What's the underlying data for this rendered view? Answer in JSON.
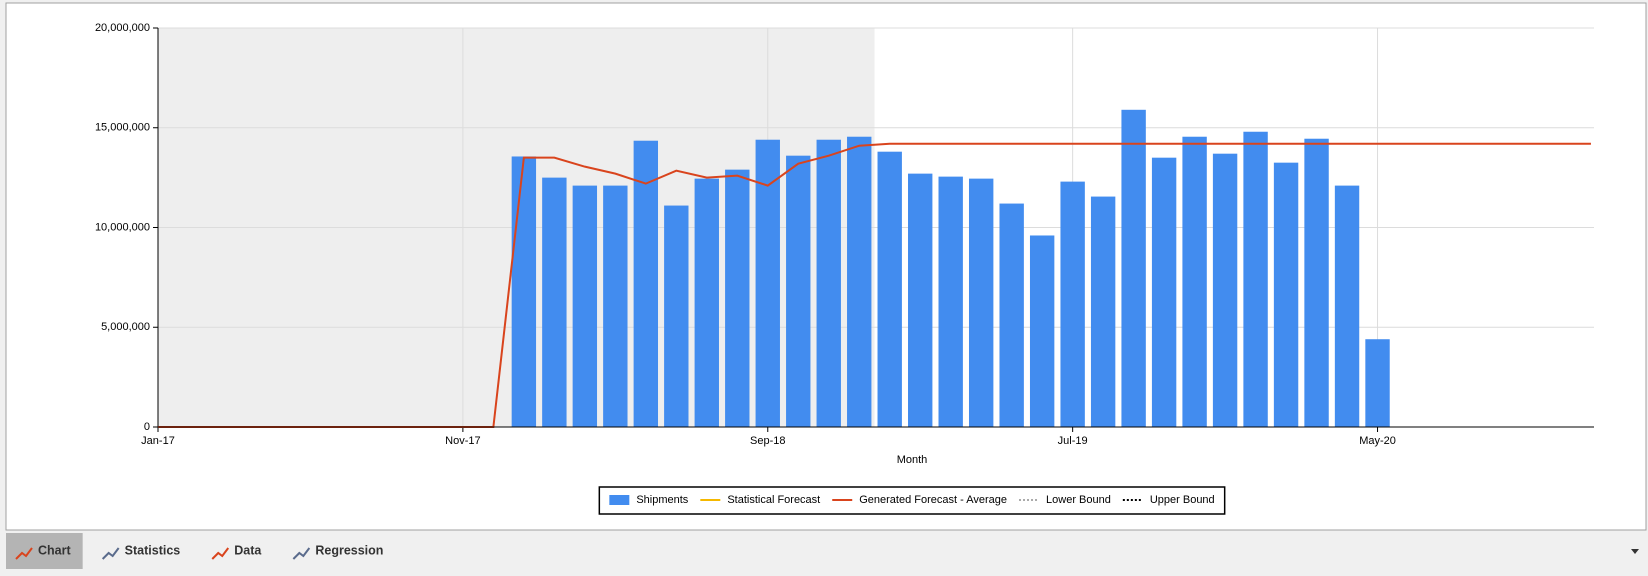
{
  "chart_data": {
    "type": "bar",
    "x_label": "Month",
    "xlim": [
      0,
      47.1
    ],
    "xticks": [
      {
        "value": 0,
        "label": "Jan-17"
      },
      {
        "value": 10,
        "label": "Nov-17"
      },
      {
        "value": 20,
        "label": "Sep-18"
      },
      {
        "value": 30,
        "label": "Jul-19"
      },
      {
        "value": 40,
        "label": "May-20"
      }
    ],
    "ylim": [
      0,
      20000000
    ],
    "yticks": [
      {
        "value": 0,
        "label": "0"
      },
      {
        "value": 5000000,
        "label": "5,000,000"
      },
      {
        "value": 10000000,
        "label": "10,000,000"
      },
      {
        "value": 15000000,
        "label": "15,000,000"
      },
      {
        "value": 20000000,
        "label": "20,000,000"
      }
    ],
    "grid": true,
    "shaded_range": [
      0,
      23.5
    ],
    "legend": "bottom",
    "series": [
      {
        "name": "Shipments",
        "style": "bar",
        "color": "#428cef",
        "x": [
          12,
          13,
          14,
          15,
          16,
          17,
          18,
          19,
          20,
          21,
          22,
          23,
          24,
          25,
          26,
          27,
          28,
          29,
          30,
          31,
          32,
          33,
          34,
          35,
          36,
          37,
          38,
          39,
          40
        ],
        "values": [
          13560000,
          12500000,
          12100000,
          12100000,
          14350000,
          11100000,
          12450000,
          12900000,
          14400000,
          13600000,
          14400000,
          14550000,
          13800000,
          12700000,
          12550000,
          12450000,
          11200000,
          9600000,
          12300000,
          11550000,
          15900000,
          13500000,
          14550000,
          13700000,
          14800000,
          13250000,
          14450000,
          12100000,
          4400000
        ]
      },
      {
        "name": "Statistical Forecast",
        "style": "line",
        "color": "#f5b800"
      },
      {
        "name": "Generated Forecast - Average",
        "style": "line",
        "color": "#d9441d",
        "x": [
          0,
          1,
          2,
          3,
          4,
          5,
          6,
          7,
          8,
          9,
          10,
          11,
          12,
          13,
          14,
          15,
          16,
          17,
          18,
          19,
          20,
          21,
          22,
          23,
          24,
          25,
          26,
          27,
          28,
          29,
          30,
          31,
          32,
          33,
          34,
          35,
          36,
          37,
          38,
          39,
          40,
          41,
          42,
          43,
          44,
          45,
          46,
          47
        ],
        "values": [
          0,
          0,
          0,
          0,
          0,
          0,
          0,
          0,
          0,
          0,
          0,
          0,
          13500000,
          13500000,
          13050000,
          12700000,
          12200000,
          12850000,
          12500000,
          12600000,
          12100000,
          13200000,
          13600000,
          14100000,
          14200000,
          14200000,
          14200000,
          14200000,
          14200000,
          14200000,
          14200000,
          14200000,
          14200000,
          14200000,
          14200000,
          14200000,
          14200000,
          14200000,
          14200000,
          14200000,
          14200000,
          14200000,
          14200000,
          14200000,
          14200000,
          14200000,
          14200000,
          14200000
        ]
      },
      {
        "name": "Lower Bound",
        "style": "dotted",
        "color": "#aaaaaa"
      },
      {
        "name": "Upper Bound",
        "style": "dotted",
        "color": "#000000"
      }
    ]
  },
  "tabs": [
    "Chart",
    "Statistics",
    "Data",
    "Regression"
  ],
  "active_tab": 0
}
